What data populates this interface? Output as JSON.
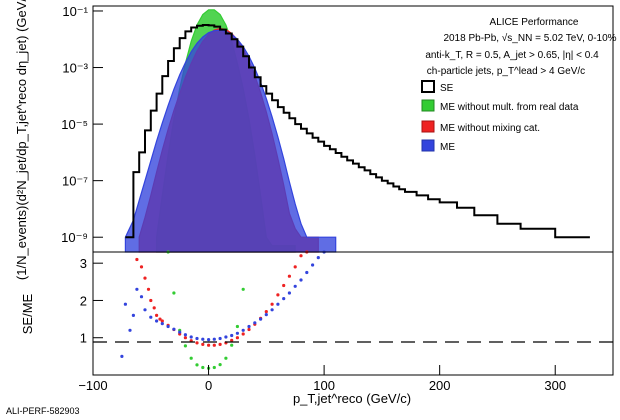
{
  "watermark": "ALI-PERF-582903",
  "colors": {
    "se": "#000000",
    "me_real": "#33cc33",
    "me_nocat": "#ee2222",
    "me": "#3344dd",
    "unity": "#000000"
  },
  "performance_text": {
    "line1": "ALICE Performance",
    "line2": "2018 Pb-Pb, √s_NN = 5.02 TeV, 0-10%",
    "line3": "anti-k_T, R = 0.5, A_jet > 0.65, |η| <  0.4",
    "line4": "ch-particle jets, p_T^lead > 4 GeV/c"
  },
  "chart_data": [
    {
      "type": "line",
      "panel": "top",
      "ylabel": "(1/N_events)(d²N_jet/dp_T,jet^reco dη_jet) (GeV/c)⁻¹",
      "xlim": [
        -100,
        350
      ],
      "ylim": [
        3e-10,
        0.15
      ],
      "yscale": "log",
      "yticks": [
        {
          "value": 0.1,
          "label": "10⁻¹"
        },
        {
          "value": 0.001,
          "label": "10⁻³"
        },
        {
          "value": 1e-05,
          "label": "10⁻⁵"
        },
        {
          "value": 1e-07,
          "label": "10⁻⁷"
        },
        {
          "value": 1e-09,
          "label": "10⁻⁹"
        }
      ],
      "legend_position": "top-right",
      "series": [
        {
          "name": "SE",
          "key": "se",
          "style": "step",
          "x": [
            -72,
            -65,
            -60,
            -55,
            -50,
            -45,
            -40,
            -35,
            -30,
            -25,
            -20,
            -15,
            -10,
            -5,
            0,
            5,
            10,
            15,
            20,
            25,
            30,
            35,
            40,
            45,
            50,
            55,
            60,
            65,
            70,
            75,
            80,
            85,
            90,
            95,
            100,
            105,
            110,
            115,
            120,
            125,
            130,
            135,
            140,
            145,
            150,
            155,
            160,
            165,
            170,
            180,
            190,
            200,
            215,
            230,
            250,
            270,
            300
          ],
          "y": [
            1e-09,
            2e-07,
            1e-06,
            6e-06,
            3e-05,
            0.00012,
            0.0005,
            0.0017,
            0.0048,
            0.011,
            0.019,
            0.026,
            0.03,
            0.032,
            0.031,
            0.028,
            0.022,
            0.016,
            0.01,
            0.0055,
            0.0025,
            0.001,
            0.00045,
            0.00022,
            0.00012,
            7e-05,
            4e-05,
            2.5e-05,
            1.6e-05,
            1e-05,
            6.8e-06,
            4.7e-06,
            3.3e-06,
            2.4e-06,
            1.7e-06,
            1.3e-06,
            9.5e-07,
            7e-07,
            5.2e-07,
            4e-07,
            3e-07,
            2.3e-07,
            1.7e-07,
            1.3e-07,
            1e-07,
            8e-08,
            6.2e-08,
            5e-08,
            4e-08,
            3e-08,
            2.2e-08,
            1.7e-08,
            1.1e-08,
            6e-09,
            3e-09,
            2e-09,
            1e-09
          ]
        },
        {
          "name": "ME without mult. from real data",
          "key": "me_real",
          "style": "band",
          "x": [
            -45,
            -40,
            -35,
            -30,
            -25,
            -20,
            -15,
            -10,
            -5,
            0,
            5,
            10,
            15,
            20,
            25,
            30,
            35,
            40,
            45,
            50,
            55,
            60,
            65,
            70,
            75
          ],
          "y": [
            1e-09,
            3e-08,
            8e-07,
            1.5e-05,
            0.00018,
            0.0014,
            0.0085,
            0.032,
            0.075,
            0.11,
            0.11,
            0.075,
            0.032,
            0.0085,
            0.0014,
            0.00018,
            1.5e-05,
            8e-07,
            3e-08,
            1e-09,
            5e-10,
            5e-10,
            5e-10,
            5e-10,
            5e-10
          ]
        },
        {
          "name": "ME without mixing cat.",
          "key": "me_nocat",
          "style": "band",
          "x": [
            -60,
            -55,
            -50,
            -45,
            -40,
            -35,
            -30,
            -25,
            -20,
            -15,
            -10,
            -5,
            0,
            5,
            10,
            15,
            20,
            25,
            30,
            35,
            40,
            45,
            50,
            55,
            60,
            65,
            70,
            75,
            80,
            85,
            90,
            95
          ],
          "y": [
            1e-09,
            5e-09,
            3e-08,
            2e-07,
            1.2e-06,
            6.5e-06,
            3e-05,
            0.00012,
            0.00045,
            0.0014,
            0.0038,
            0.0085,
            0.015,
            0.021,
            0.024,
            0.022,
            0.016,
            0.0095,
            0.0045,
            0.0017,
            0.00052,
            0.00013,
            2.7e-05,
            4.5e-06,
            6e-07,
            7e-08,
            7e-09,
            2e-09,
            1e-09,
            1e-09,
            1e-09,
            1e-09
          ]
        },
        {
          "name": "ME",
          "key": "me",
          "style": "band",
          "x": [
            -72,
            -65,
            -60,
            -55,
            -50,
            -45,
            -40,
            -35,
            -30,
            -25,
            -20,
            -15,
            -10,
            -5,
            0,
            5,
            10,
            15,
            20,
            25,
            30,
            35,
            40,
            45,
            50,
            55,
            60,
            65,
            70,
            75,
            80,
            85,
            90,
            95,
            100,
            105,
            110
          ],
          "y": [
            1e-09,
            4e-09,
            2e-08,
            1e-07,
            5e-07,
            2.5e-06,
            1.1e-05,
            4.5e-05,
            0.00017,
            0.00055,
            0.0015,
            0.0036,
            0.0072,
            0.012,
            0.017,
            0.02,
            0.021,
            0.019,
            0.015,
            0.01,
            0.0055,
            0.0025,
            0.00095,
            0.0003,
            8e-05,
            1.8e-05,
            3.5e-06,
            6e-07,
            9e-08,
            1.5e-08,
            3e-09,
            1e-09,
            1e-09,
            1e-09,
            1e-09,
            1e-09,
            1e-09
          ]
        }
      ]
    },
    {
      "type": "scatter",
      "panel": "bottom",
      "xlabel": "p_T,jet^reco (GeV/c)",
      "ylabel": "SE/ME",
      "xlim": [
        -100,
        350
      ],
      "ylim": [
        0,
        3.3
      ],
      "xticks": [
        -100,
        0,
        100,
        200,
        300
      ],
      "yticks": [
        1,
        2,
        3
      ],
      "reference_line": 1,
      "series": [
        {
          "name": "ME without mult. from real data",
          "key": "me_real",
          "x": [
            -35,
            -30,
            -25,
            -20,
            -15,
            -10,
            -5,
            0,
            5,
            10,
            15,
            20,
            25,
            30
          ],
          "y": [
            3.3,
            2.2,
            1.2,
            0.78,
            0.45,
            0.27,
            0.2,
            0.18,
            0.2,
            0.28,
            0.45,
            0.8,
            1.3,
            2.3
          ]
        },
        {
          "name": "ME without mixing cat.",
          "key": "me_nocat",
          "x": [
            -62,
            -58,
            -55,
            -52,
            -50,
            -47,
            -45,
            -42,
            -40,
            -35,
            -30,
            -25,
            -20,
            -15,
            -10,
            -5,
            0,
            5,
            10,
            15,
            20,
            25,
            30,
            35,
            40,
            45,
            50,
            55,
            60,
            65,
            70,
            75,
            80,
            85
          ],
          "y": [
            3.1,
            2.9,
            2.6,
            2.3,
            2.0,
            1.8,
            1.6,
            1.5,
            1.45,
            1.33,
            1.22,
            1.1,
            1.0,
            0.92,
            0.86,
            0.82,
            0.8,
            0.8,
            0.82,
            0.86,
            0.93,
            1.0,
            1.1,
            1.22,
            1.36,
            1.52,
            1.7,
            1.9,
            2.15,
            2.4,
            2.65,
            2.9,
            3.2,
            3.3
          ]
        },
        {
          "name": "ME",
          "key": "me",
          "x": [
            -75,
            -72,
            -68,
            -65,
            -62,
            -58,
            -55,
            -50,
            -45,
            -40,
            -35,
            -30,
            -25,
            -20,
            -15,
            -10,
            -5,
            0,
            5,
            10,
            15,
            20,
            25,
            30,
            35,
            40,
            45,
            50,
            55,
            60,
            65,
            70,
            75,
            80,
            85,
            90,
            95,
            100
          ],
          "y": [
            0.5,
            1.9,
            1.2,
            1.6,
            2.3,
            2.1,
            1.75,
            1.55,
            1.45,
            1.38,
            1.3,
            1.23,
            1.15,
            1.08,
            1.02,
            0.98,
            0.96,
            0.95,
            0.96,
            0.98,
            1.02,
            1.06,
            1.12,
            1.2,
            1.3,
            1.4,
            1.5,
            1.62,
            1.75,
            1.9,
            2.05,
            2.2,
            2.38,
            2.55,
            2.75,
            2.95,
            3.15,
            3.3
          ]
        }
      ]
    }
  ]
}
